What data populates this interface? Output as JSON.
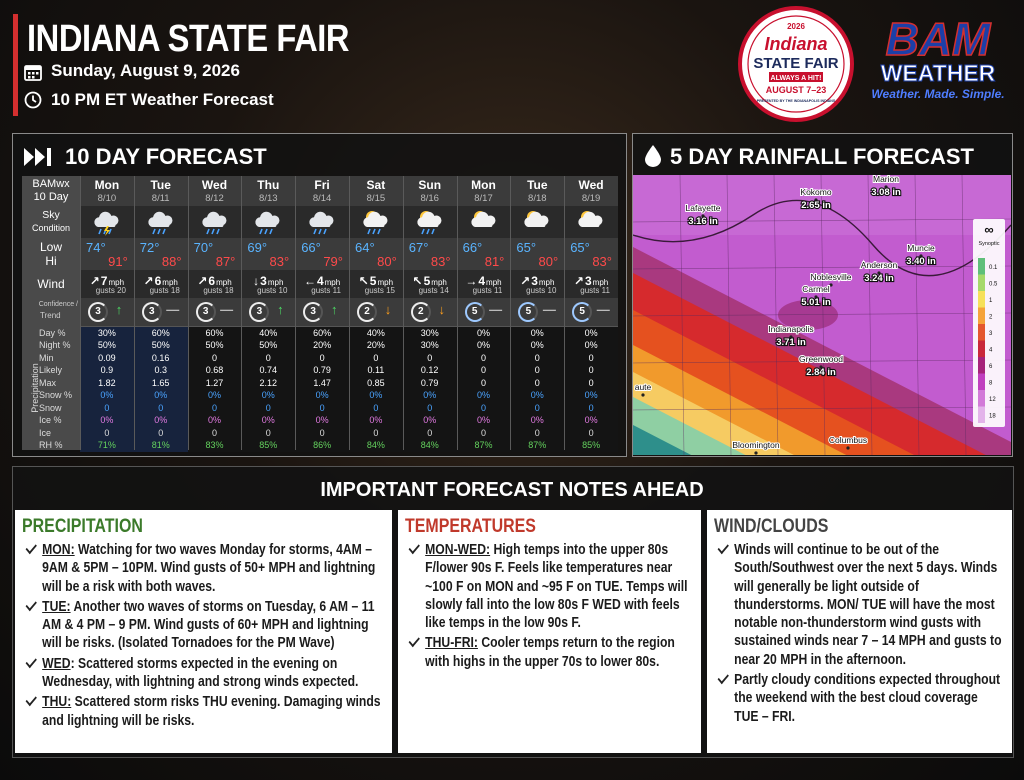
{
  "header": {
    "title": "INDIANA STATE FAIR",
    "date": "Sunday, August 9, 2026",
    "subtitle": "10 PM ET Weather Forecast"
  },
  "fair_logo": {
    "year": "2026",
    "name": "Indiana",
    "subtitle": "STATE FAIR",
    "tagline": "ALWAYS A HIT!",
    "dates": "AUGUST 7–23",
    "sponsor": "PRESENTED BY THE INDIANAPOLIS INDIANS"
  },
  "brand_logo": {
    "name": "BAM",
    "subtitle": "WEATHER",
    "tagline": "Weather. Made. Simple."
  },
  "forecast": {
    "title": "10 DAY FORECAST",
    "corner": [
      "BAMwx",
      "10 Day"
    ],
    "labels": {
      "sky": [
        "Sky",
        "Condition"
      ],
      "low": "Low",
      "hi": "Hi",
      "wind": "Wind",
      "trend": [
        "Confidence /",
        "Trend"
      ],
      "group": "Precipitation",
      "precip": [
        "Day %",
        "Night %",
        "Min",
        "Likely",
        "Max",
        "Snow %",
        "Snow",
        "Ice %",
        "Ice",
        "RH %"
      ]
    },
    "wind_unit": "mph",
    "days": [
      {
        "day": "Mon",
        "date": "8/10",
        "icon": "storm",
        "low": "74°",
        "hi": "91°",
        "wind_dir": "↗",
        "wind": "7",
        "gusts": "gusts 20",
        "confidence": "3",
        "trend": "↑",
        "precip": [
          "30%",
          "50%",
          "0.09",
          "0.9",
          "1.82",
          "0%",
          "0",
          "0%",
          "0",
          "71%"
        ]
      },
      {
        "day": "Tue",
        "date": "8/11",
        "icon": "rain",
        "low": "72°",
        "hi": "88°",
        "wind_dir": "↗",
        "wind": "6",
        "gusts": "gusts 18",
        "confidence": "3",
        "trend": "—",
        "precip": [
          "60%",
          "50%",
          "0.16",
          "0.3",
          "1.65",
          "0%",
          "0",
          "0%",
          "0",
          "81%"
        ]
      },
      {
        "day": "Wed",
        "date": "8/12",
        "icon": "rain",
        "low": "70°",
        "hi": "87°",
        "wind_dir": "↗",
        "wind": "6",
        "gusts": "gusts 18",
        "confidence": "3",
        "trend": "—",
        "precip": [
          "60%",
          "50%",
          "0",
          "0.68",
          "1.27",
          "0%",
          "0",
          "0%",
          "0",
          "83%"
        ]
      },
      {
        "day": "Thu",
        "date": "8/13",
        "icon": "rain",
        "low": "69°",
        "hi": "83°",
        "wind_dir": "↓",
        "wind": "3",
        "gusts": "gusts 10",
        "confidence": "3",
        "trend": "↑",
        "precip": [
          "40%",
          "50%",
          "0",
          "0.74",
          "2.12",
          "0%",
          "0",
          "0%",
          "0",
          "85%"
        ]
      },
      {
        "day": "Fri",
        "date": "8/14",
        "icon": "rain",
        "low": "66°",
        "hi": "79°",
        "wind_dir": "←",
        "wind": "4",
        "gusts": "gusts 11",
        "confidence": "3",
        "trend": "↑",
        "precip": [
          "60%",
          "20%",
          "0",
          "0.79",
          "1.47",
          "0%",
          "0",
          "0%",
          "0",
          "86%"
        ]
      },
      {
        "day": "Sat",
        "date": "8/15",
        "icon": "sunrain",
        "low": "64°",
        "hi": "80°",
        "wind_dir": "↖",
        "wind": "5",
        "gusts": "gusts 15",
        "confidence": "2",
        "trend": "↓",
        "precip": [
          "40%",
          "20%",
          "0",
          "0.11",
          "0.85",
          "0%",
          "0",
          "0%",
          "0",
          "84%"
        ]
      },
      {
        "day": "Sun",
        "date": "8/16",
        "icon": "sunrain",
        "low": "67°",
        "hi": "83°",
        "wind_dir": "↖",
        "wind": "5",
        "gusts": "gusts 14",
        "confidence": "2",
        "trend": "↓",
        "precip": [
          "30%",
          "30%",
          "0",
          "0.12",
          "0.79",
          "0%",
          "0",
          "0%",
          "0",
          "84%"
        ]
      },
      {
        "day": "Mon",
        "date": "8/17",
        "icon": "partly",
        "low": "66°",
        "hi": "81°",
        "wind_dir": "→",
        "wind": "4",
        "gusts": "gusts 11",
        "confidence": "5",
        "trend": "—",
        "precip": [
          "0%",
          "0%",
          "0",
          "0",
          "0",
          "0%",
          "0",
          "0%",
          "0",
          "87%"
        ]
      },
      {
        "day": "Tue",
        "date": "8/18",
        "icon": "partly",
        "low": "65°",
        "hi": "80°",
        "wind_dir": "↗",
        "wind": "3",
        "gusts": "gusts 10",
        "confidence": "5",
        "trend": "—",
        "precip": [
          "0%",
          "0%",
          "0",
          "0",
          "0",
          "0%",
          "0",
          "0%",
          "0",
          "87%"
        ]
      },
      {
        "day": "Wed",
        "date": "8/19",
        "icon": "partly",
        "low": "65°",
        "hi": "83°",
        "wind_dir": "↗",
        "wind": "3",
        "gusts": "gusts 11",
        "confidence": "5",
        "trend": "—",
        "precip": [
          "0%",
          "0%",
          "0",
          "0",
          "0",
          "0%",
          "0",
          "0%",
          "0",
          "85%"
        ]
      }
    ]
  },
  "rainfall": {
    "title": "5 DAY RAINFALL FORECAST",
    "cities": [
      {
        "name": "Lafayette",
        "amount": "3.16 in"
      },
      {
        "name": "Kokomo",
        "amount": "2.65 in"
      },
      {
        "name": "Marion",
        "amount": "3.08 in"
      },
      {
        "name": "Muncie",
        "amount": "3.40 in"
      },
      {
        "name": "Anderson",
        "amount": "3.24 in"
      },
      {
        "name": "Noblesville"
      },
      {
        "name": "Carmel",
        "amount": "5.01 in"
      },
      {
        "name": "Indianapolis",
        "amount": "3.71 in"
      },
      {
        "name": "Greenwood",
        "amount": "2.84 in"
      },
      {
        "name": "Columbus"
      },
      {
        "name": "Bloomington"
      },
      {
        "name": "aute"
      }
    ],
    "legend": {
      "symbol": "∞",
      "name": "Synoptic",
      "ticks": [
        "0.1",
        "0.5",
        "1",
        "2",
        "3",
        "4",
        "6",
        "8",
        "12",
        "18"
      ]
    }
  },
  "notes": {
    "title": "IMPORTANT FORECAST NOTES AHEAD",
    "sections": [
      {
        "heading": "PRECIPITATION",
        "color": "#3b7a2a",
        "items": [
          {
            "lead": "MON:",
            "text": " Watching for two waves Monday for storms, 4AM – 9AM & 5PM – 10PM. Wind gusts of 50+ MPH and lightning will be a risk with both waves."
          },
          {
            "lead": "TUE:",
            "text": " Another two waves of storms on Tuesday, 6 AM – 11 AM & 4 PM – 9 PM. Wind gusts of 60+ MPH and lightning will be risks. (Isolated Tornadoes for the PM Wave)"
          },
          {
            "lead": "WED",
            "text": ": Scattered storms expected in the evening on Wednesday, with lightning and strong winds expected."
          },
          {
            "lead": "THU:",
            "text": " Scattered storm risks THU evening. Damaging winds and lightning will be risks."
          }
        ]
      },
      {
        "heading": "TEMPERATURES",
        "color": "#c0392b",
        "items": [
          {
            "lead": "MON-WED:",
            "text": " High temps into the upper 80s F/lower 90s F. Feels like temperatures near ~100 F on MON and ~95 F on TUE. Temps will slowly fall into the low 80s F WED with feels like temps in the low 90s F."
          },
          {
            "lead": "THU-FRI:",
            "text": " Cooler temps return to the region with highs in the upper 70s to lower 80s."
          }
        ]
      },
      {
        "heading": "WIND/CLOUDS",
        "color": "#444444",
        "items": [
          {
            "text": "Winds will continue to be out of the South/Southwest over the next 5 days. Winds will generally be light outside of thunderstorms.  MON/ TUE will have the most notable non-thunderstorm wind gusts with sustained winds near 7 – 14 MPH and gusts to near 20 MPH in the afternoon."
          },
          {
            "text": "Partly cloudy conditions expected throughout the weekend with the best cloud coverage TUE – FRI."
          }
        ]
      }
    ]
  }
}
